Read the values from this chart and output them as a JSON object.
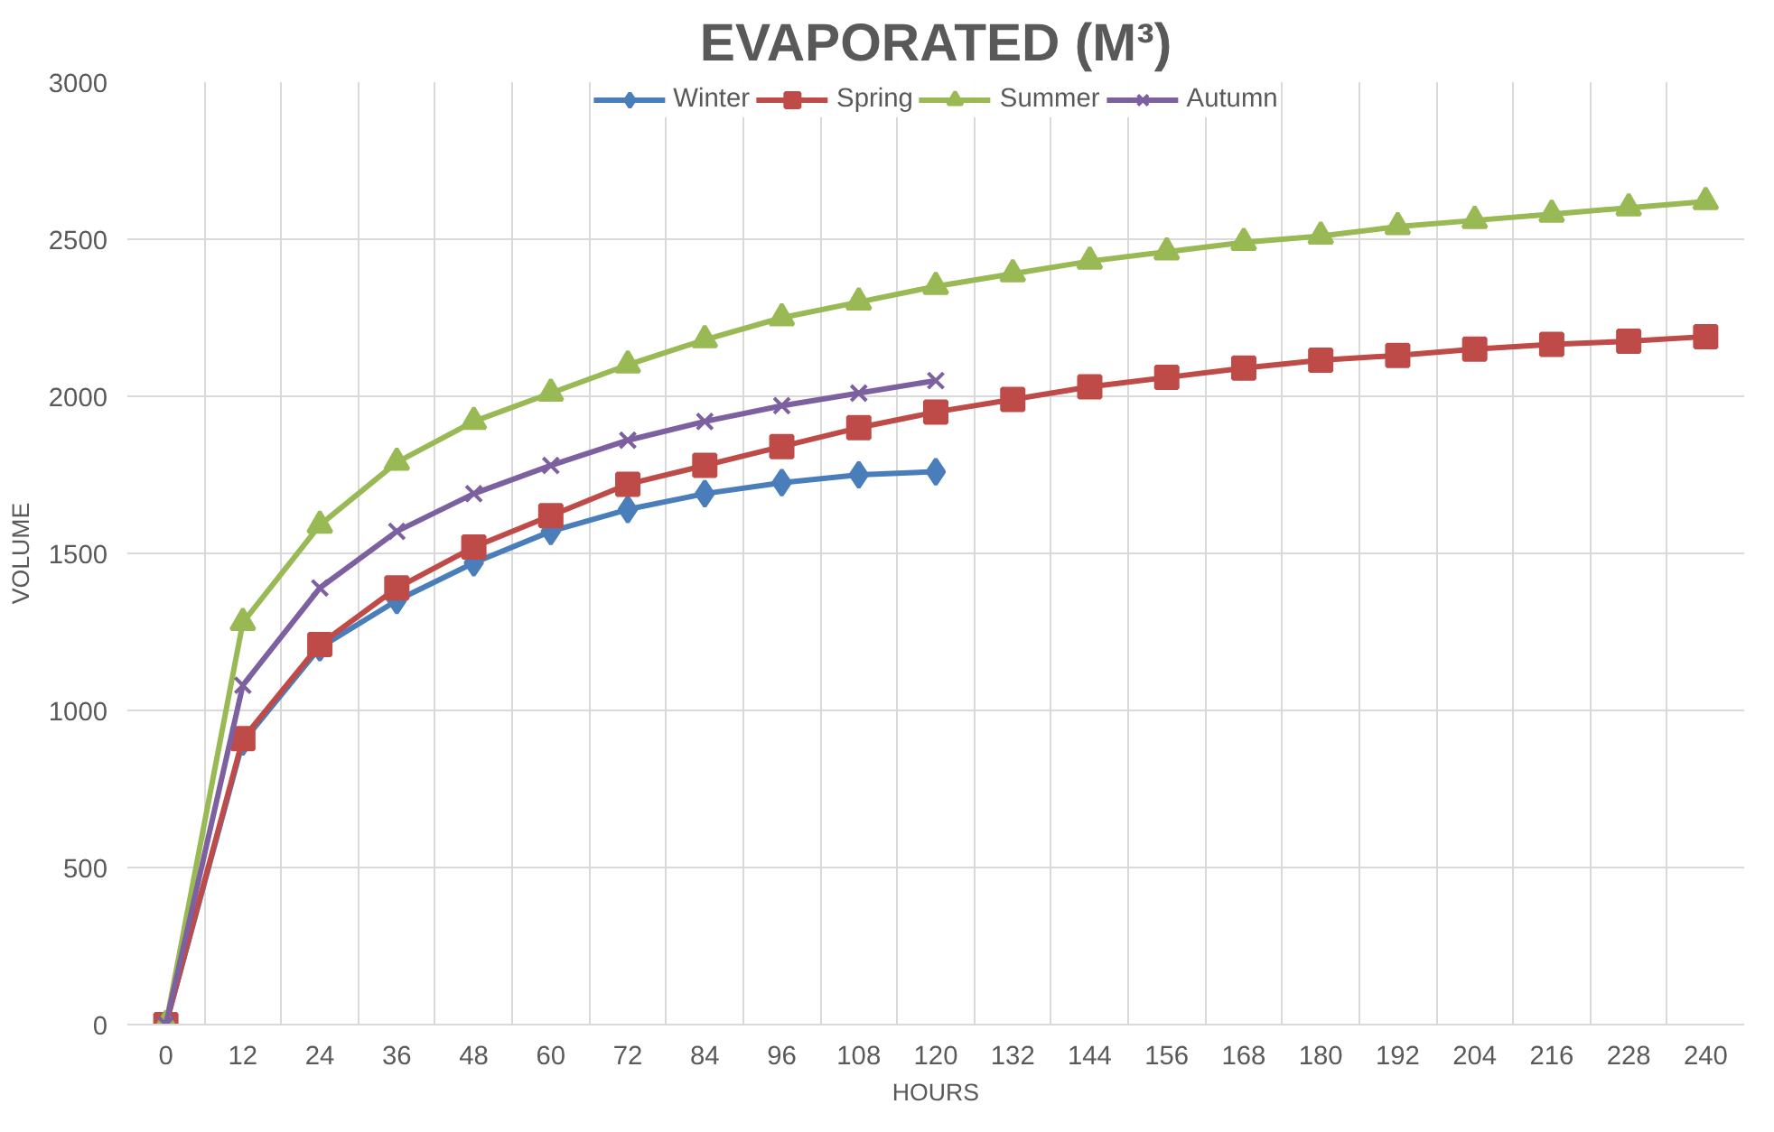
{
  "chart_data": {
    "type": "line",
    "title": "EVAPORATED (M³)",
    "xlabel": "HOURS",
    "ylabel": "VOLUME",
    "categories": [
      "0",
      "12",
      "24",
      "36",
      "48",
      "60",
      "72",
      "84",
      "96",
      "108",
      "120",
      "132",
      "144",
      "156",
      "168",
      "180",
      "192",
      "204",
      "216",
      "228",
      "240"
    ],
    "ylim": [
      0,
      3000
    ],
    "yticks": [
      0,
      500,
      1000,
      1500,
      2000,
      2500,
      3000
    ],
    "grid": true,
    "legend": "top",
    "series": [
      {
        "name": "Winter",
        "color": "#4a7ebb",
        "marker": "diamond",
        "values": [
          0,
          900,
          1200,
          1350,
          1470,
          1570,
          1640,
          1690,
          1725,
          1750,
          1760,
          null,
          null,
          null,
          null,
          null,
          null,
          null,
          null,
          null,
          null
        ]
      },
      {
        "name": "Spring",
        "color": "#be4b48",
        "marker": "square",
        "values": [
          0,
          910,
          1210,
          1390,
          1520,
          1620,
          1720,
          1780,
          1840,
          1900,
          1950,
          1990,
          2030,
          2060,
          2090,
          2115,
          2130,
          2150,
          2165,
          2175,
          2190
        ]
      },
      {
        "name": "Summer",
        "color": "#98b954",
        "marker": "triangle",
        "values": [
          0,
          1280,
          1590,
          1790,
          1920,
          2010,
          2100,
          2180,
          2250,
          2300,
          2350,
          2390,
          2430,
          2460,
          2490,
          2510,
          2540,
          2560,
          2580,
          2600,
          2620
        ]
      },
      {
        "name": "Autumn",
        "color": "#7d60a0",
        "marker": "x",
        "values": [
          0,
          1080,
          1390,
          1570,
          1690,
          1780,
          1860,
          1920,
          1970,
          2010,
          2050,
          null,
          null,
          null,
          null,
          null,
          null,
          null,
          null,
          null,
          null
        ]
      }
    ]
  }
}
